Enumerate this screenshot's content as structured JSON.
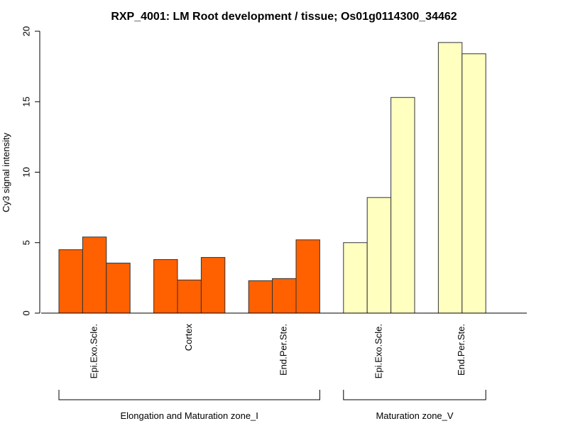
{
  "chart_data": {
    "type": "bar",
    "title": "RXP_4001: LM Root development / tissue; Os01g0114300_34462",
    "ylabel": "Cy3 signal intensity",
    "xlabel": "",
    "ylim": [
      0,
      20
    ],
    "yticks": [
      0,
      5,
      10,
      15,
      20
    ],
    "yticks_text": [
      "0",
      "5",
      "10",
      "15",
      "20"
    ],
    "groups": [
      {
        "label": "Elongation and Maturation zone_I",
        "color": "#ff6000",
        "categories": [
          {
            "label": "Epi.Exo.Scle.",
            "values": [
              4.5,
              5.4,
              3.55
            ]
          },
          {
            "label": "Cortex",
            "values": [
              3.8,
              2.35,
              3.95
            ]
          },
          {
            "label": "End.Per.Ste.",
            "values": [
              2.3,
              2.45,
              5.2
            ]
          }
        ]
      },
      {
        "label": "Maturation zone_V",
        "color": "#ffffc0",
        "categories": [
          {
            "label": "Epi.Exo.Scle.",
            "values": [
              5.0,
              8.2,
              15.3
            ]
          },
          {
            "label": "End.Per.Ste.",
            "values": [
              19.2,
              18.4
            ]
          }
        ]
      }
    ]
  }
}
